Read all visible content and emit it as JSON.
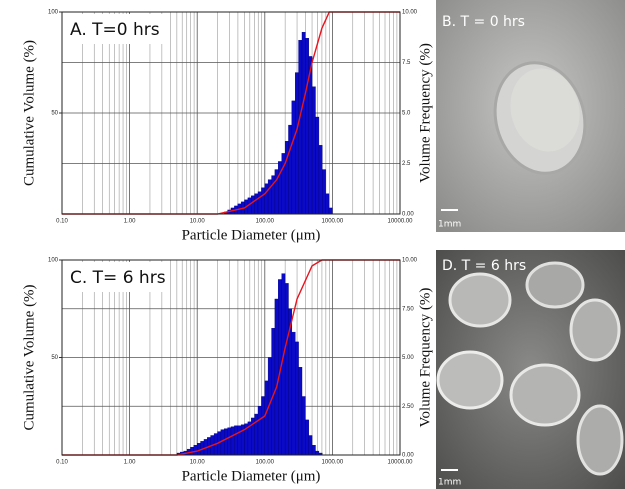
{
  "chart_data": [
    {
      "type": "histogram",
      "panel_label": "A. T=0 hrs",
      "xlabel": "Particle Diameter (μm)",
      "ylabel": "Cumulative Volume (%)",
      "y2label": "Volume Frequency (%)",
      "xscale": "log",
      "xlim": [
        0.1,
        10000
      ],
      "xticks": [
        {
          "value": 0.1,
          "label": "0.10"
        },
        {
          "value": 1,
          "label": "1.00"
        },
        {
          "value": 10,
          "label": "10.00"
        },
        {
          "value": 100,
          "label": "100.00"
        },
        {
          "value": 1000,
          "label": "1000.00"
        },
        {
          "value": 10000,
          "label": "10000.00"
        }
      ],
      "ylim": [
        0,
        100
      ],
      "yticks": [
        50,
        100
      ],
      "y2lim": [
        0,
        10
      ],
      "y2ticks": [
        {
          "value": 0,
          "label": "0.00"
        },
        {
          "value": 2.5,
          "label": "2.5"
        },
        {
          "value": 5,
          "label": "5.0"
        },
        {
          "value": 7.5,
          "label": "7.5"
        },
        {
          "value": 10,
          "label": "10.00"
        }
      ],
      "grid": true,
      "minor_grid": true,
      "histogram": {
        "axis": "y2",
        "color": "#0a0ac8",
        "bins": [
          25.1,
          28.2,
          31.6,
          35.5,
          39.8,
          44.7,
          50.1,
          56.2,
          63.1,
          70.8,
          79.4,
          89.1,
          100,
          112,
          126,
          141,
          158,
          178,
          200,
          224,
          251,
          282,
          316,
          355,
          398,
          447,
          501,
          562,
          631,
          708,
          794,
          891,
          1000
        ],
        "counts": [
          0.1,
          0.2,
          0.3,
          0.4,
          0.5,
          0.6,
          0.7,
          0.8,
          0.9,
          1.0,
          1.1,
          1.3,
          1.5,
          1.7,
          1.9,
          2.2,
          2.6,
          3.0,
          3.6,
          4.4,
          5.6,
          7.0,
          8.6,
          9.0,
          8.7,
          7.8,
          6.3,
          4.8,
          3.4,
          2.2,
          1.0,
          0.3
        ]
      },
      "cumulative": {
        "color": "#e8141e",
        "x": [
          0.1,
          20,
          50,
          100,
          150,
          200,
          300,
          400,
          500,
          700,
          900,
          10000
        ],
        "values": [
          0,
          0,
          3,
          10,
          17,
          25,
          42,
          60,
          75,
          92,
          100,
          100
        ]
      }
    },
    {
      "type": "histogram",
      "panel_label": "C. T= 6 hrs",
      "xlabel": "Particle Diameter (μm)",
      "ylabel": "Cumulative Volume (%)",
      "y2label": "Volume Frequency (%)",
      "xscale": "log",
      "xlim": [
        0.1,
        10000
      ],
      "xticks": [
        {
          "value": 0.1,
          "label": "0.10"
        },
        {
          "value": 1,
          "label": "1.00"
        },
        {
          "value": 10,
          "label": "10.00"
        },
        {
          "value": 100,
          "label": "100.00"
        },
        {
          "value": 1000,
          "label": "1000.00"
        },
        {
          "value": 10000,
          "label": "10000.00"
        }
      ],
      "ylim": [
        0,
        100
      ],
      "yticks": [
        50,
        100
      ],
      "y2lim": [
        0,
        10
      ],
      "y2ticks": [
        {
          "value": 0,
          "label": "0.00"
        },
        {
          "value": 2.5,
          "label": "2.50"
        },
        {
          "value": 5,
          "label": "5.00"
        },
        {
          "value": 7.5,
          "label": "7.50"
        },
        {
          "value": 10,
          "label": "10.00"
        }
      ],
      "grid": true,
      "minor_grid": true,
      "histogram": {
        "axis": "y2",
        "color": "#0a0ac8",
        "bins": [
          5.01,
          5.62,
          6.31,
          7.08,
          7.94,
          8.91,
          10,
          11.2,
          12.6,
          14.1,
          15.8,
          17.8,
          20,
          22.4,
          25.1,
          28.2,
          31.6,
          35.5,
          39.8,
          44.7,
          50.1,
          56.2,
          63.1,
          70.8,
          79.4,
          89.1,
          100,
          112,
          126,
          141,
          158,
          178,
          200,
          224,
          251,
          282,
          316,
          355,
          398,
          447,
          501,
          562,
          631,
          708
        ],
        "counts": [
          0.1,
          0.15,
          0.2,
          0.3,
          0.4,
          0.5,
          0.6,
          0.7,
          0.8,
          0.9,
          1.0,
          1.1,
          1.2,
          1.3,
          1.35,
          1.4,
          1.45,
          1.5,
          1.5,
          1.55,
          1.6,
          1.7,
          1.9,
          2.1,
          2.5,
          3.0,
          3.8,
          5.0,
          6.5,
          8.0,
          9.0,
          9.3,
          8.8,
          7.5,
          6.3,
          5.8,
          4.5,
          3.0,
          1.8,
          1.0,
          0.5,
          0.2,
          0.1
        ]
      },
      "cumulative": {
        "color": "#e8141e",
        "x": [
          0.1,
          5,
          10,
          20,
          50,
          100,
          150,
          200,
          300,
          500,
          700,
          10000
        ],
        "values": [
          0,
          0,
          2,
          6,
          13,
          20,
          35,
          55,
          80,
          97,
          100,
          100
        ]
      }
    }
  ],
  "photos": [
    {
      "label": "B. T = 0 hrs",
      "scale": "1mm"
    },
    {
      "label": "D. T = 6 hrs",
      "scale": "1mm"
    }
  ]
}
